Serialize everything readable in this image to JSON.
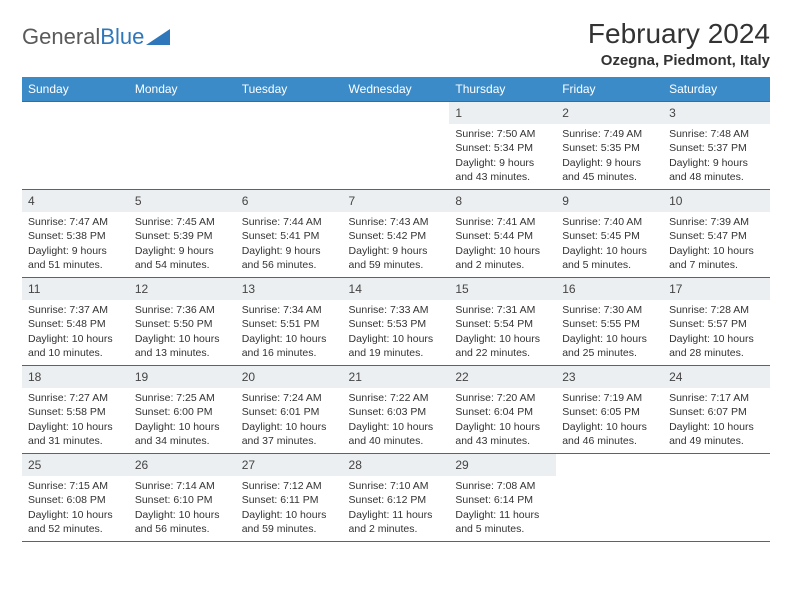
{
  "logo": {
    "text1": "General",
    "text2": "Blue"
  },
  "title": "February 2024",
  "location": "Ozegna, Piedmont, Italy",
  "colors": {
    "header_bg": "#3b8bc9",
    "header_text": "#ffffff",
    "row_border": "#2f6fa8",
    "daynum_bg": "#eceff1",
    "logo_gray": "#5a5a5a",
    "logo_blue": "#2f77bb"
  },
  "fonts": {
    "title_size_pt": 21,
    "location_size_pt": 11,
    "dayheader_size_pt": 9,
    "body_size_pt": 8
  },
  "week_headers": [
    "Sunday",
    "Monday",
    "Tuesday",
    "Wednesday",
    "Thursday",
    "Friday",
    "Saturday"
  ],
  "weeks": [
    [
      {
        "empty": true
      },
      {
        "empty": true
      },
      {
        "empty": true
      },
      {
        "empty": true
      },
      {
        "day": "1",
        "sunrise": "Sunrise: 7:50 AM",
        "sunset": "Sunset: 5:34 PM",
        "daylight1": "Daylight: 9 hours",
        "daylight2": "and 43 minutes."
      },
      {
        "day": "2",
        "sunrise": "Sunrise: 7:49 AM",
        "sunset": "Sunset: 5:35 PM",
        "daylight1": "Daylight: 9 hours",
        "daylight2": "and 45 minutes."
      },
      {
        "day": "3",
        "sunrise": "Sunrise: 7:48 AM",
        "sunset": "Sunset: 5:37 PM",
        "daylight1": "Daylight: 9 hours",
        "daylight2": "and 48 minutes."
      }
    ],
    [
      {
        "day": "4",
        "sunrise": "Sunrise: 7:47 AM",
        "sunset": "Sunset: 5:38 PM",
        "daylight1": "Daylight: 9 hours",
        "daylight2": "and 51 minutes."
      },
      {
        "day": "5",
        "sunrise": "Sunrise: 7:45 AM",
        "sunset": "Sunset: 5:39 PM",
        "daylight1": "Daylight: 9 hours",
        "daylight2": "and 54 minutes."
      },
      {
        "day": "6",
        "sunrise": "Sunrise: 7:44 AM",
        "sunset": "Sunset: 5:41 PM",
        "daylight1": "Daylight: 9 hours",
        "daylight2": "and 56 minutes."
      },
      {
        "day": "7",
        "sunrise": "Sunrise: 7:43 AM",
        "sunset": "Sunset: 5:42 PM",
        "daylight1": "Daylight: 9 hours",
        "daylight2": "and 59 minutes."
      },
      {
        "day": "8",
        "sunrise": "Sunrise: 7:41 AM",
        "sunset": "Sunset: 5:44 PM",
        "daylight1": "Daylight: 10 hours",
        "daylight2": "and 2 minutes."
      },
      {
        "day": "9",
        "sunrise": "Sunrise: 7:40 AM",
        "sunset": "Sunset: 5:45 PM",
        "daylight1": "Daylight: 10 hours",
        "daylight2": "and 5 minutes."
      },
      {
        "day": "10",
        "sunrise": "Sunrise: 7:39 AM",
        "sunset": "Sunset: 5:47 PM",
        "daylight1": "Daylight: 10 hours",
        "daylight2": "and 7 minutes."
      }
    ],
    [
      {
        "day": "11",
        "sunrise": "Sunrise: 7:37 AM",
        "sunset": "Sunset: 5:48 PM",
        "daylight1": "Daylight: 10 hours",
        "daylight2": "and 10 minutes."
      },
      {
        "day": "12",
        "sunrise": "Sunrise: 7:36 AM",
        "sunset": "Sunset: 5:50 PM",
        "daylight1": "Daylight: 10 hours",
        "daylight2": "and 13 minutes."
      },
      {
        "day": "13",
        "sunrise": "Sunrise: 7:34 AM",
        "sunset": "Sunset: 5:51 PM",
        "daylight1": "Daylight: 10 hours",
        "daylight2": "and 16 minutes."
      },
      {
        "day": "14",
        "sunrise": "Sunrise: 7:33 AM",
        "sunset": "Sunset: 5:53 PM",
        "daylight1": "Daylight: 10 hours",
        "daylight2": "and 19 minutes."
      },
      {
        "day": "15",
        "sunrise": "Sunrise: 7:31 AM",
        "sunset": "Sunset: 5:54 PM",
        "daylight1": "Daylight: 10 hours",
        "daylight2": "and 22 minutes."
      },
      {
        "day": "16",
        "sunrise": "Sunrise: 7:30 AM",
        "sunset": "Sunset: 5:55 PM",
        "daylight1": "Daylight: 10 hours",
        "daylight2": "and 25 minutes."
      },
      {
        "day": "17",
        "sunrise": "Sunrise: 7:28 AM",
        "sunset": "Sunset: 5:57 PM",
        "daylight1": "Daylight: 10 hours",
        "daylight2": "and 28 minutes."
      }
    ],
    [
      {
        "day": "18",
        "sunrise": "Sunrise: 7:27 AM",
        "sunset": "Sunset: 5:58 PM",
        "daylight1": "Daylight: 10 hours",
        "daylight2": "and 31 minutes."
      },
      {
        "day": "19",
        "sunrise": "Sunrise: 7:25 AM",
        "sunset": "Sunset: 6:00 PM",
        "daylight1": "Daylight: 10 hours",
        "daylight2": "and 34 minutes."
      },
      {
        "day": "20",
        "sunrise": "Sunrise: 7:24 AM",
        "sunset": "Sunset: 6:01 PM",
        "daylight1": "Daylight: 10 hours",
        "daylight2": "and 37 minutes."
      },
      {
        "day": "21",
        "sunrise": "Sunrise: 7:22 AM",
        "sunset": "Sunset: 6:03 PM",
        "daylight1": "Daylight: 10 hours",
        "daylight2": "and 40 minutes."
      },
      {
        "day": "22",
        "sunrise": "Sunrise: 7:20 AM",
        "sunset": "Sunset: 6:04 PM",
        "daylight1": "Daylight: 10 hours",
        "daylight2": "and 43 minutes."
      },
      {
        "day": "23",
        "sunrise": "Sunrise: 7:19 AM",
        "sunset": "Sunset: 6:05 PM",
        "daylight1": "Daylight: 10 hours",
        "daylight2": "and 46 minutes."
      },
      {
        "day": "24",
        "sunrise": "Sunrise: 7:17 AM",
        "sunset": "Sunset: 6:07 PM",
        "daylight1": "Daylight: 10 hours",
        "daylight2": "and 49 minutes."
      }
    ],
    [
      {
        "day": "25",
        "sunrise": "Sunrise: 7:15 AM",
        "sunset": "Sunset: 6:08 PM",
        "daylight1": "Daylight: 10 hours",
        "daylight2": "and 52 minutes."
      },
      {
        "day": "26",
        "sunrise": "Sunrise: 7:14 AM",
        "sunset": "Sunset: 6:10 PM",
        "daylight1": "Daylight: 10 hours",
        "daylight2": "and 56 minutes."
      },
      {
        "day": "27",
        "sunrise": "Sunrise: 7:12 AM",
        "sunset": "Sunset: 6:11 PM",
        "daylight1": "Daylight: 10 hours",
        "daylight2": "and 59 minutes."
      },
      {
        "day": "28",
        "sunrise": "Sunrise: 7:10 AM",
        "sunset": "Sunset: 6:12 PM",
        "daylight1": "Daylight: 11 hours",
        "daylight2": "and 2 minutes."
      },
      {
        "day": "29",
        "sunrise": "Sunrise: 7:08 AM",
        "sunset": "Sunset: 6:14 PM",
        "daylight1": "Daylight: 11 hours",
        "daylight2": "and 5 minutes."
      },
      {
        "empty": true
      },
      {
        "empty": true
      }
    ]
  ]
}
